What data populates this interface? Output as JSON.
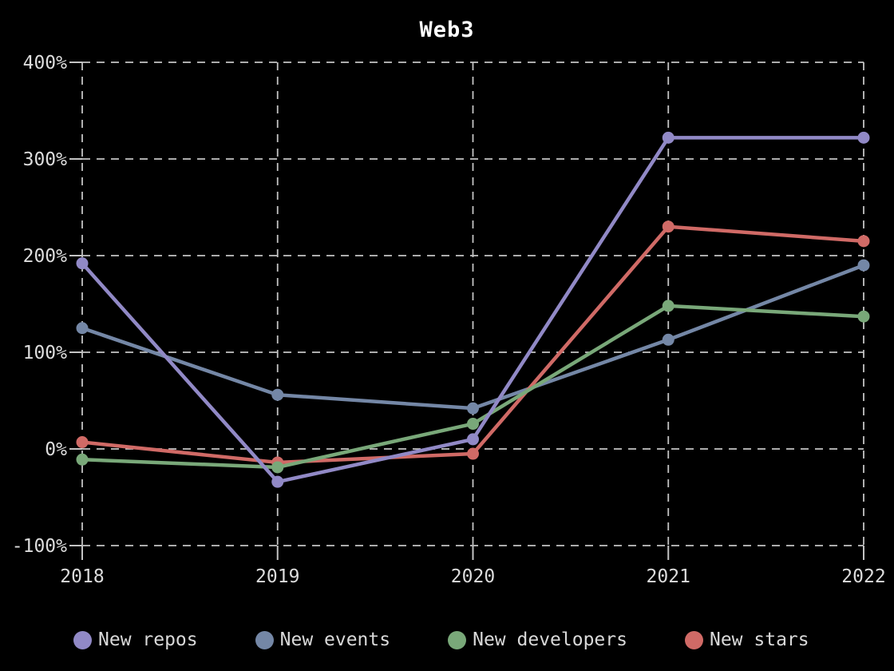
{
  "title": "Web3",
  "chart_data": {
    "type": "line",
    "title": "Web3",
    "categories": [
      "2018",
      "2019",
      "2020",
      "2021",
      "2022"
    ],
    "unit": "%",
    "series": [
      {
        "name": "New repos",
        "color": "#9189c6",
        "values": [
          192,
          -34,
          10,
          322,
          322
        ]
      },
      {
        "name": "New events",
        "color": "#7487a6",
        "values": [
          125,
          56,
          42,
          113,
          190
        ]
      },
      {
        "name": "New developers",
        "color": "#79a879",
        "values": [
          -11,
          -19,
          26,
          148,
          137
        ]
      },
      {
        "name": "New stars",
        "color": "#d06a66",
        "values": [
          7,
          -14,
          -5,
          230,
          215
        ]
      }
    ],
    "y_ticks": [
      "400%",
      "300%",
      "200%",
      "100%",
      "0%",
      "-100%"
    ],
    "y_tick_values": [
      400,
      300,
      200,
      100,
      0,
      -100
    ],
    "ylim": [
      -100,
      400
    ],
    "xlabel": "",
    "ylabel": "",
    "grid": "dashed",
    "legend_position": "bottom",
    "background": "#000000",
    "text_color": "#dcdcdc",
    "grid_color": "#c4c4c4",
    "draw_order": [
      1,
      3,
      2,
      0
    ]
  }
}
